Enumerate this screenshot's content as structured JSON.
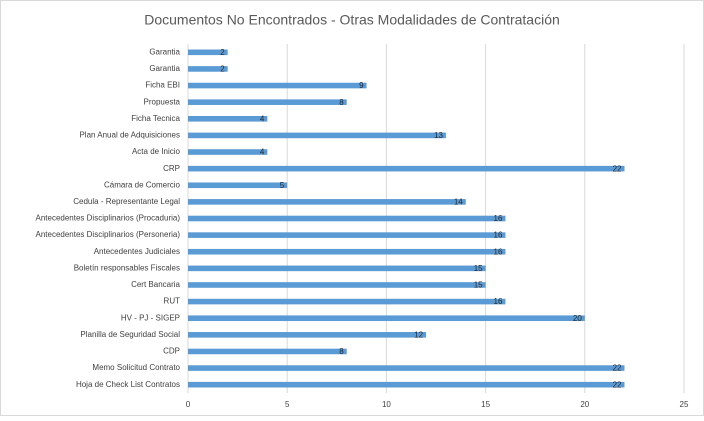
{
  "chart_data": {
    "type": "barh",
    "title": "Documentos No Encontrados - Otras Modalidades de Contratación",
    "categories": [
      "Garantia",
      "Garantia",
      "Ficha EBI",
      "Propuesta",
      "Ficha Tecnica",
      "Plan Anual de Adquisiciones",
      "Acta de Inicio",
      "CRP",
      "Cámara de Comercio",
      "Cedula - Representante Legal",
      "Antecedentes Disciplinarios (Procaduria)",
      "Antecedentes Disciplinarios (Personeria)",
      "Antecedentes Judiciales",
      "Boletín responsables Fiscales",
      "Cert Bancaria",
      "RUT",
      "HV - PJ - SIGEP",
      "Planilla de Seguridad Social",
      "CDP",
      "Memo Solicitud Contrato",
      "Hoja de Check List Contratos"
    ],
    "values": [
      2,
      2,
      9,
      8,
      4,
      13,
      4,
      22,
      5,
      14,
      16,
      16,
      16,
      15,
      15,
      16,
      20,
      12,
      8,
      22,
      22
    ],
    "color": "#5b9bd5",
    "xlim": [
      0,
      25
    ],
    "xticks": [
      0,
      5,
      10,
      15,
      20,
      25
    ],
    "grid": true
  }
}
